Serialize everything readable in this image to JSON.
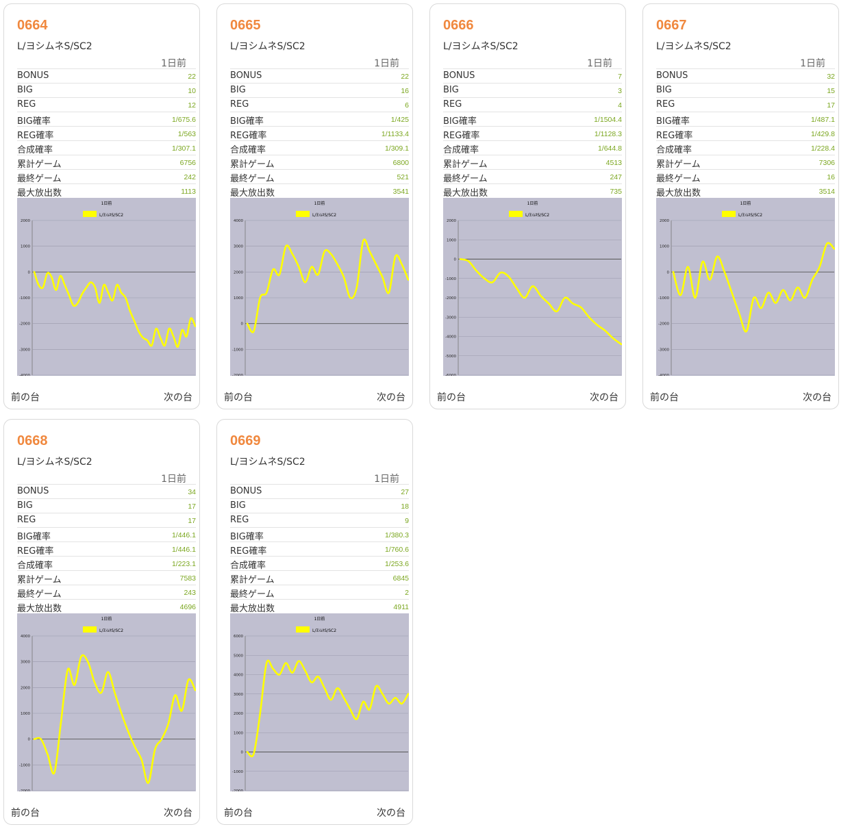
{
  "day_label": "1日前",
  "stat_labels": [
    "BONUS",
    "BIG",
    "REG",
    "BIG確率",
    "REG確率",
    "合成確率",
    "累計ゲーム",
    "最終ゲーム",
    "最大放出数"
  ],
  "nav": {
    "prev": "前の台",
    "next": "次の台"
  },
  "colors": {
    "number": "#f0883e",
    "value": "#7aa61e",
    "line": "#ffff00",
    "plot_bg": "#c0bfd0"
  },
  "machines": [
    {
      "number": "0664",
      "model": "L/ヨシムネS/SC2",
      "stats": [
        "22",
        "10",
        "12",
        "1/675.6",
        "1/563",
        "1/307.1",
        "6756",
        "242",
        "1113"
      ],
      "chart_data": {
        "type": "line",
        "title": "1日前",
        "legend": [
          "L/ﾖｼﾑﾈS/SC2"
        ],
        "yticks": [
          "2000",
          "1000",
          "0",
          "-1000",
          "-2000",
          "-3000",
          "-4000"
        ],
        "ylim": [
          -4000,
          2000
        ],
        "series": [
          {
            "name": "L/ﾖｼﾑﾈS/SC2",
            "values": [
              0,
              -500,
              -600,
              -50,
              -200,
              -700,
              -150,
              -500,
              -900,
              -1300,
              -1200,
              -850,
              -600,
              -400,
              -600,
              -1200,
              -500,
              -800,
              -1100,
              -500,
              -800,
              -1000,
              -1500,
              -1900,
              -2300,
              -2550,
              -2650,
              -2850,
              -2200,
              -2550,
              -2850,
              -2200,
              -2500,
              -2900,
              -2250,
              -2500,
              -1800,
              -2100
            ]
          }
        ]
      }
    },
    {
      "number": "0665",
      "model": "L/ヨシムネS/SC2",
      "stats": [
        "22",
        "16",
        "6",
        "1/425",
        "1/1133.4",
        "1/309.1",
        "6800",
        "521",
        "3541"
      ],
      "chart_data": {
        "type": "line",
        "title": "1日前",
        "legend": [
          "L/ﾖｼﾑﾈS/SC2"
        ],
        "yticks": [
          "4000",
          "3000",
          "2000",
          "1000",
          "0",
          "-1000",
          "-2000"
        ],
        "ylim": [
          -2000,
          4000
        ],
        "series": [
          {
            "name": "L/ﾖｼﾑﾈS/SC2",
            "values": [
              0,
              -300,
              1000,
              1200,
              2100,
              1900,
              3000,
              2700,
              2200,
              1600,
              2200,
              1900,
              2800,
              2700,
              2300,
              1800,
              1000,
              1400,
              3200,
              2800,
              2300,
              1800,
              1200,
              2600,
              2300,
              1700
            ]
          }
        ]
      }
    },
    {
      "number": "0666",
      "model": "L/ヨシムネS/SC2",
      "stats": [
        "7",
        "3",
        "4",
        "1/1504.4",
        "1/1128.3",
        "1/644.8",
        "4513",
        "247",
        "735"
      ],
      "chart_data": {
        "type": "line",
        "title": "1日前",
        "legend": [
          "L/ﾖｼﾑﾈS/SC2"
        ],
        "yticks": [
          "2000",
          "1000",
          "0",
          "-1000",
          "-2000",
          "-3000",
          "-4000",
          "-5000",
          "-6000"
        ],
        "ylim": [
          -6000,
          2000
        ],
        "series": [
          {
            "name": "L/ﾖｼﾑﾈS/SC2",
            "values": [
              0,
              -100,
              -600,
              -1000,
              -1200,
              -700,
              -900,
              -1500,
              -2000,
              -1400,
              -1900,
              -2300,
              -2700,
              -2000,
              -2300,
              -2500,
              -3000,
              -3400,
              -3700,
              -4100,
              -4400
            ]
          }
        ]
      }
    },
    {
      "number": "0667",
      "model": "L/ヨシムネS/SC2",
      "stats": [
        "32",
        "15",
        "17",
        "1/487.1",
        "1/429.8",
        "1/228.4",
        "7306",
        "16",
        "3514"
      ],
      "chart_data": {
        "type": "line",
        "title": "1日前",
        "legend": [
          "L/ﾖｼﾑﾈS/SC2"
        ],
        "yticks": [
          "2000",
          "1000",
          "0",
          "-1000",
          "-2000",
          "-3000",
          "-4000"
        ],
        "ylim": [
          -4000,
          2000
        ],
        "series": [
          {
            "name": "L/ﾖｼﾑﾈS/SC2",
            "values": [
              0,
              -900,
              200,
              -1000,
              400,
              -300,
              600,
              0,
              -800,
              -1600,
              -2300,
              -1000,
              -1400,
              -800,
              -1200,
              -700,
              -1100,
              -600,
              -1000,
              -300,
              200,
              1100,
              900
            ]
          }
        ]
      }
    },
    {
      "number": "0668",
      "model": "L/ヨシムネS/SC2",
      "stats": [
        "34",
        "17",
        "17",
        "1/446.1",
        "1/446.1",
        "1/223.1",
        "7583",
        "243",
        "4696"
      ],
      "chart_data": {
        "type": "line",
        "title": "1日前",
        "legend": [
          "L/ﾖｼﾑﾈS/SC2"
        ],
        "yticks": [
          "4000",
          "3000",
          "2000",
          "1000",
          "0",
          "-1000",
          "-2000"
        ],
        "ylim": [
          -2000,
          4000
        ],
        "series": [
          {
            "name": "L/ﾖｼﾑﾈS/SC2",
            "values": [
              0,
              0,
              -600,
              -1300,
              700,
              2700,
              2100,
              3200,
              3000,
              2200,
              1800,
              2600,
              1800,
              1000,
              300,
              -300,
              -800,
              -1700,
              -400,
              0,
              600,
              1700,
              1100,
              2300,
              1900
            ]
          }
        ]
      }
    },
    {
      "number": "0669",
      "model": "L/ヨシムネS/SC2",
      "stats": [
        "27",
        "18",
        "9",
        "1/380.3",
        "1/760.6",
        "1/253.6",
        "6845",
        "2",
        "4911"
      ],
      "chart_data": {
        "type": "line",
        "title": "1日前",
        "legend": [
          "L/ﾖｼﾑﾈS/SC2"
        ],
        "yticks": [
          "6000",
          "5000",
          "4000",
          "3000",
          "2000",
          "1000",
          "0",
          "-1000",
          "-2000"
        ],
        "ylim": [
          -2000,
          6000
        ],
        "series": [
          {
            "name": "L/ﾖｼﾑﾈS/SC2",
            "values": [
              0,
              -100,
              2000,
              4600,
              4300,
              4000,
              4600,
              4100,
              4700,
              4200,
              3600,
              3900,
              3300,
              2700,
              3300,
              2800,
              2200,
              1700,
              2600,
              2200,
              3400,
              3000,
              2500,
              2800,
              2500,
              3000
            ]
          }
        ]
      }
    }
  ]
}
